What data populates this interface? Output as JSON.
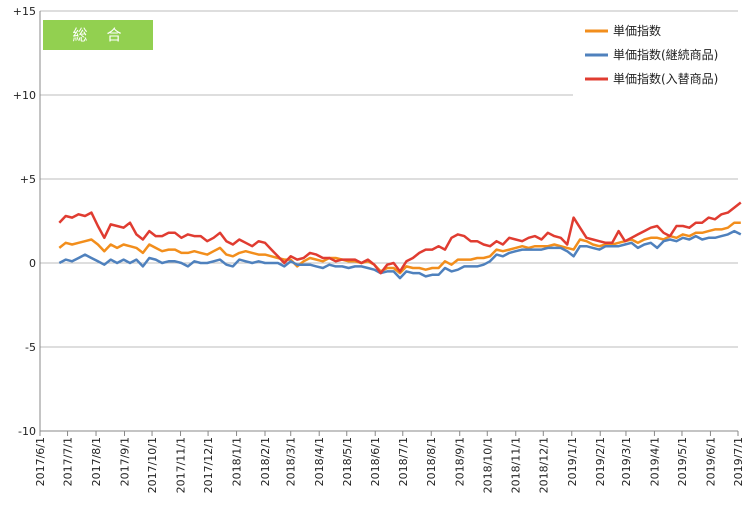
{
  "chart_data": {
    "type": "line",
    "badge": {
      "label": "総　合",
      "color": "#92D050"
    },
    "ylim": [
      -10,
      15
    ],
    "yticks": [
      {
        "v": 15,
        "label": "+15"
      },
      {
        "v": 10,
        "label": "+10"
      },
      {
        "v": 5,
        "label": "+5"
      },
      {
        "v": 0,
        "label": "0"
      },
      {
        "v": -5,
        "label": "-5"
      },
      {
        "v": -10,
        "label": "-10"
      }
    ],
    "x_start": "2017/6/1",
    "x_end": "2019/7/1",
    "xtick_labels": [
      "2017/6/1",
      "2017/7/1",
      "2017/8/1",
      "2017/9/1",
      "2017/10/1",
      "2017/11/1",
      "2017/12/1",
      "2018/1/1",
      "2018/2/1",
      "2018/3/1",
      "2018/4/1",
      "2018/5/1",
      "2018/6/1",
      "2018/7/1",
      "2018/8/1",
      "2018/9/1",
      "2018/10/1",
      "2018/11/1",
      "2018/12/1",
      "2019/1/1",
      "2019/2/1",
      "2019/3/1",
      "2019/4/1",
      "2019/5/1",
      "2019/6/1",
      "2019/7/1"
    ],
    "x": [
      "2017/6/22",
      "2017/6/29",
      "2017/7/6",
      "2017/7/13",
      "2017/7/20",
      "2017/7/27",
      "2017/8/3",
      "2017/8/10",
      "2017/8/17",
      "2017/8/24",
      "2017/8/31",
      "2017/9/7",
      "2017/9/14",
      "2017/9/21",
      "2017/9/28",
      "2017/10/5",
      "2017/10/12",
      "2017/10/19",
      "2017/10/26",
      "2017/11/2",
      "2017/11/9",
      "2017/11/16",
      "2017/11/23",
      "2017/11/30",
      "2017/12/7",
      "2017/12/14",
      "2017/12/21",
      "2017/12/28",
      "2018/1/4",
      "2018/1/11",
      "2018/1/18",
      "2018/1/25",
      "2018/2/1",
      "2018/2/8",
      "2018/2/15",
      "2018/2/22",
      "2018/3/1",
      "2018/3/8",
      "2018/3/15",
      "2018/3/22",
      "2018/3/29",
      "2018/4/5",
      "2018/4/12",
      "2018/4/19",
      "2018/4/26",
      "2018/5/3",
      "2018/5/10",
      "2018/5/17",
      "2018/5/24",
      "2018/5/31",
      "2018/6/7",
      "2018/6/14",
      "2018/6/21",
      "2018/6/28",
      "2018/7/5",
      "2018/7/12",
      "2018/7/19",
      "2018/7/26",
      "2018/8/2",
      "2018/8/9",
      "2018/8/16",
      "2018/8/23",
      "2018/8/30",
      "2018/9/6",
      "2018/9/13",
      "2018/9/20",
      "2018/9/27",
      "2018/10/4",
      "2018/10/11",
      "2018/10/18",
      "2018/10/25",
      "2018/11/1",
      "2018/11/8",
      "2018/11/15",
      "2018/11/22",
      "2018/11/29",
      "2018/12/6",
      "2018/12/13",
      "2018/12/20",
      "2018/12/27",
      "2019/1/3",
      "2019/1/10",
      "2019/1/17",
      "2019/1/24",
      "2019/1/31",
      "2019/2/7",
      "2019/2/14",
      "2019/2/21",
      "2019/2/28",
      "2019/3/7",
      "2019/3/14",
      "2019/3/21",
      "2019/3/28",
      "2019/4/4",
      "2019/4/11",
      "2019/4/18",
      "2019/4/25",
      "2019/5/2",
      "2019/5/9",
      "2019/5/16",
      "2019/5/23",
      "2019/5/30",
      "2019/6/6",
      "2019/6/13",
      "2019/6/20",
      "2019/6/27",
      "2019/7/4"
    ],
    "series": [
      {
        "name": "単価指数",
        "color": "#F28E1C",
        "values": [
          0.9,
          1.2,
          1.1,
          1.2,
          1.3,
          1.4,
          1.1,
          0.7,
          1.1,
          0.9,
          1.1,
          1.0,
          0.9,
          0.6,
          1.1,
          0.9,
          0.7,
          0.8,
          0.8,
          0.6,
          0.6,
          0.7,
          0.6,
          0.5,
          0.7,
          0.9,
          0.5,
          0.4,
          0.6,
          0.7,
          0.6,
          0.5,
          0.5,
          0.4,
          0.3,
          0.2,
          0.2,
          -0.2,
          0.1,
          0.3,
          0.2,
          0.1,
          0.3,
          0.3,
          0.2,
          0.1,
          0.1,
          0.0,
          0.1,
          -0.1,
          -0.5,
          -0.3,
          -0.3,
          -0.6,
          -0.2,
          -0.3,
          -0.3,
          -0.4,
          -0.3,
          -0.3,
          0.1,
          -0.1,
          0.2,
          0.2,
          0.2,
          0.3,
          0.3,
          0.4,
          0.8,
          0.7,
          0.8,
          0.9,
          1.0,
          0.9,
          1.0,
          1.0,
          1.0,
          1.1,
          1.0,
          0.9,
          0.8,
          1.4,
          1.3,
          1.1,
          1.0,
          1.1,
          1.1,
          1.2,
          1.3,
          1.4,
          1.2,
          1.4,
          1.5,
          1.5,
          1.4,
          1.6,
          1.5,
          1.7,
          1.6,
          1.8,
          1.8,
          1.9,
          2.0,
          2.0,
          2.1,
          2.4,
          2.4
        ]
      },
      {
        "name": "単価指数(継続商品)",
        "color": "#4F81BD",
        "values": [
          0.0,
          0.2,
          0.1,
          0.3,
          0.5,
          0.3,
          0.1,
          -0.1,
          0.2,
          0.0,
          0.2,
          0.0,
          0.2,
          -0.2,
          0.3,
          0.2,
          0.0,
          0.1,
          0.1,
          0.0,
          -0.2,
          0.1,
          0.0,
          0.0,
          0.1,
          0.2,
          -0.1,
          -0.2,
          0.2,
          0.1,
          0.0,
          0.1,
          0.0,
          0.0,
          0.0,
          -0.2,
          0.1,
          -0.1,
          -0.1,
          -0.1,
          -0.2,
          -0.3,
          -0.1,
          -0.2,
          -0.2,
          -0.3,
          -0.2,
          -0.2,
          -0.3,
          -0.4,
          -0.6,
          -0.5,
          -0.5,
          -0.9,
          -0.5,
          -0.6,
          -0.6,
          -0.8,
          -0.7,
          -0.7,
          -0.3,
          -0.5,
          -0.4,
          -0.2,
          -0.2,
          -0.2,
          -0.1,
          0.1,
          0.5,
          0.4,
          0.6,
          0.7,
          0.8,
          0.8,
          0.8,
          0.8,
          0.9,
          0.9,
          0.9,
          0.7,
          0.4,
          1.0,
          1.0,
          0.9,
          0.8,
          1.0,
          1.0,
          1.0,
          1.1,
          1.2,
          0.9,
          1.1,
          1.2,
          0.9,
          1.3,
          1.4,
          1.3,
          1.5,
          1.4,
          1.6,
          1.4,
          1.5,
          1.5,
          1.6,
          1.7,
          1.9,
          1.7
        ]
      },
      {
        "name": "単価指数(入替商品)",
        "color": "#E03C31",
        "values": [
          2.4,
          2.8,
          2.7,
          2.9,
          2.8,
          3.0,
          2.2,
          1.5,
          2.3,
          2.2,
          2.1,
          2.4,
          1.7,
          1.4,
          1.9,
          1.6,
          1.6,
          1.8,
          1.8,
          1.5,
          1.7,
          1.6,
          1.6,
          1.3,
          1.5,
          1.8,
          1.3,
          1.1,
          1.4,
          1.2,
          1.0,
          1.3,
          1.2,
          0.8,
          0.4,
          0.0,
          0.4,
          0.2,
          0.3,
          0.6,
          0.5,
          0.3,
          0.3,
          0.1,
          0.2,
          0.2,
          0.2,
          0.0,
          0.2,
          -0.1,
          -0.6,
          -0.1,
          0.0,
          -0.5,
          0.1,
          0.3,
          0.6,
          0.8,
          0.8,
          1.0,
          0.8,
          1.5,
          1.7,
          1.6,
          1.3,
          1.3,
          1.1,
          1.0,
          1.3,
          1.1,
          1.5,
          1.4,
          1.3,
          1.5,
          1.6,
          1.4,
          1.8,
          1.6,
          1.5,
          1.1,
          2.7,
          2.1,
          1.5,
          1.4,
          1.3,
          1.2,
          1.2,
          1.9,
          1.3,
          1.5,
          1.7,
          1.9,
          2.1,
          2.2,
          1.8,
          1.6,
          2.2,
          2.2,
          2.1,
          2.4,
          2.4,
          2.7,
          2.6,
          2.9,
          3.0,
          3.3,
          3.6
        ]
      }
    ]
  }
}
